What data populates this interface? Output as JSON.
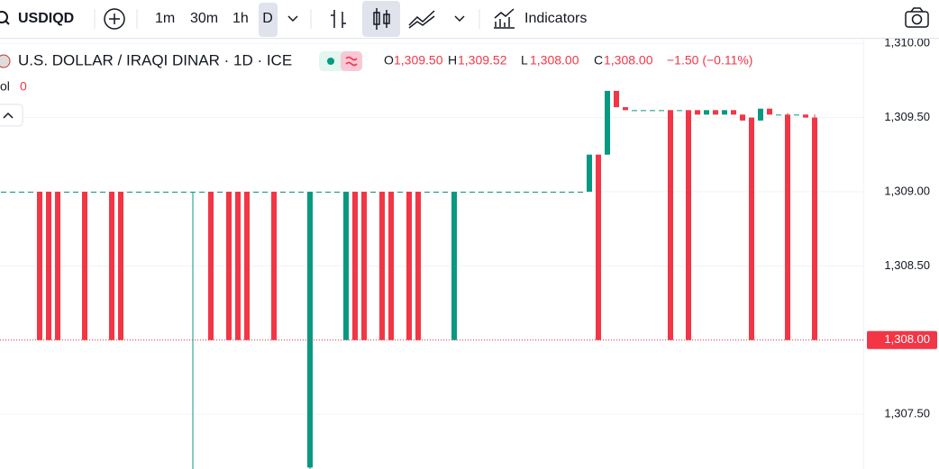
{
  "toolbar": {
    "symbol": "USDIQD",
    "intervals": [
      "1m",
      "30m",
      "1h",
      "D"
    ],
    "indicators": "Indicators"
  },
  "legend": {
    "title": "U.S. DOLLAR / IRAQI DINAR · 1D · ICE",
    "o_label": "O",
    "o": "1,309.50",
    "h_label": "H",
    "h": "1,309.52",
    "l_label": "L",
    "l": "1,308.00",
    "c_label": "C",
    "c": "1,308.00",
    "change": "−1.50 (−0.11%)",
    "vol_label": "ol",
    "vol_value": "0"
  },
  "chart_data": {
    "type": "candlestick",
    "ylim": [
      1307.13,
      1310.05
    ],
    "yticks": [
      {
        "value": 1310,
        "label": "1,310.00"
      },
      {
        "value": 1309.5,
        "label": "1,309.50"
      },
      {
        "value": 1309,
        "label": "1,309.00"
      },
      {
        "value": 1308.5,
        "label": "1,308.50"
      },
      {
        "value": 1308,
        "label": "1,308.00"
      },
      {
        "value": 1307.5,
        "label": "1,307.50"
      }
    ],
    "grid": true,
    "up_color": "#089981",
    "down_color": "#f23645",
    "last_price": {
      "value": 1308,
      "label": "1,308.00"
    },
    "open": [
      1309,
      1309,
      1309,
      1309,
      1309,
      1309,
      1309,
      1309,
      1309,
      1309,
      1309,
      1309,
      1309,
      1309,
      1309,
      1309,
      1309,
      1309,
      1309,
      1309,
      1309,
      1309,
      1309,
      1309,
      1309,
      1309,
      1309,
      1309,
      1309,
      1309,
      1309,
      1309,
      1309,
      1309,
      1307.14,
      1309,
      1309,
      1309,
      1308,
      1309,
      1309,
      1309,
      1309,
      1309,
      1309,
      1309,
      1309,
      1309,
      1309,
      1309,
      1308,
      1309,
      1309,
      1309,
      1309,
      1309,
      1309,
      1309,
      1309,
      1309,
      1309,
      1309,
      1309,
      1309,
      1309,
      1309,
      1309.25,
      1309.25,
      1309.68,
      1309.57,
      1309.55,
      1309.55,
      1309.55,
      1309.55,
      1309.55,
      1309.55,
      1309.55,
      1309.55,
      1309.52,
      1309.55,
      1309.52,
      1309.55,
      1309.52,
      1309.5,
      1309.48,
      1309.56,
      1309.52,
      1309.52,
      1309.52,
      1309.52,
      1309.5
    ],
    "high": [
      1309,
      1309,
      1309,
      1309,
      1309,
      1309,
      1309,
      1309,
      1309,
      1309,
      1309,
      1309,
      1309,
      1309,
      1309,
      1309,
      1309,
      1309,
      1309,
      1309,
      1309,
      1309,
      1309,
      1309,
      1309,
      1309,
      1309,
      1309,
      1309,
      1309,
      1309,
      1309,
      1309,
      1309,
      1309,
      1309,
      1309,
      1309,
      1309,
      1309,
      1309,
      1309,
      1309,
      1309,
      1309,
      1309,
      1309,
      1309,
      1309,
      1309,
      1309,
      1309,
      1309,
      1309,
      1309,
      1309,
      1309,
      1309,
      1309,
      1309,
      1309,
      1309,
      1309,
      1309,
      1309,
      1309.25,
      1309.25,
      1309.68,
      1309.68,
      1309.57,
      1309.55,
      1309.55,
      1309.55,
      1309.55,
      1309.55,
      1309.55,
      1309.55,
      1309.55,
      1309.55,
      1309.55,
      1309.55,
      1309.55,
      1309.52,
      1309.5,
      1309.56,
      1309.56,
      1309.52,
      1309.53,
      1309.52,
      1309.52,
      1309.52
    ],
    "low": [
      1309,
      1309,
      1309,
      1309,
      1308,
      1308,
      1308,
      1309,
      1309,
      1308,
      1309,
      1309,
      1308,
      1308,
      1309,
      1309,
      1309,
      1309,
      1309,
      1309,
      1309,
      1307.13,
      1309,
      1308,
      1309,
      1308,
      1308,
      1308,
      1309,
      1309,
      1308,
      1309,
      1309,
      1309,
      1307.13,
      1309,
      1309,
      1309,
      1308,
      1308,
      1308,
      1309,
      1308,
      1308,
      1309,
      1308,
      1308,
      1309,
      1309,
      1309,
      1308,
      1309,
      1309,
      1309,
      1309,
      1309,
      1309,
      1309,
      1309,
      1309,
      1309,
      1309,
      1309,
      1309,
      1309,
      1309,
      1308,
      1309.25,
      1309.57,
      1309.55,
      1309.55,
      1309.55,
      1309.55,
      1309.55,
      1308,
      1309.55,
      1308,
      1309.52,
      1309.52,
      1309.52,
      1309.52,
      1309.52,
      1309.48,
      1308,
      1309.48,
      1309.52,
      1309.52,
      1308,
      1309.52,
      1309.5,
      1308
    ],
    "close": [
      1309,
      1309,
      1309,
      1309,
      1308,
      1308,
      1308,
      1309,
      1309,
      1308,
      1309,
      1309,
      1308,
      1308,
      1309,
      1309,
      1309,
      1309,
      1309,
      1309,
      1309,
      1309,
      1309,
      1308,
      1309,
      1308,
      1308,
      1308,
      1309,
      1309,
      1308,
      1309,
      1309,
      1309,
      1309,
      1309,
      1309,
      1309,
      1309,
      1308,
      1308,
      1309,
      1308,
      1308,
      1309,
      1308,
      1308,
      1309,
      1309,
      1309,
      1309,
      1309,
      1309,
      1309,
      1309,
      1309,
      1309,
      1309,
      1309,
      1309,
      1309,
      1309,
      1309,
      1309,
      1309,
      1309.25,
      1308,
      1309.68,
      1309.57,
      1309.55,
      1309.55,
      1309.55,
      1309.55,
      1309.55,
      1308,
      1309.55,
      1308,
      1309.52,
      1309.55,
      1309.52,
      1309.55,
      1309.52,
      1309.48,
      1308,
      1309.56,
      1309.52,
      1309.52,
      1308,
      1309.52,
      1309.5,
      1308
    ]
  }
}
